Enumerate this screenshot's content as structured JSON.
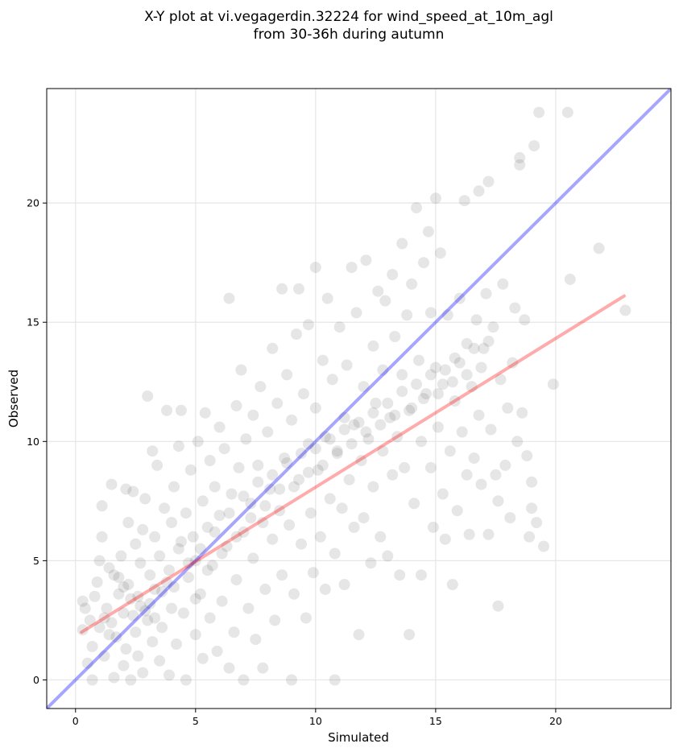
{
  "chart_data": {
    "type": "scatter",
    "title_lines": [
      "X-Y plot at vi.vegagerdin.32224 for wind_speed_at_10m_agl",
      "from 30-36h during autumn"
    ],
    "xlabel": "Simulated",
    "ylabel": "Observed",
    "xlim": [
      -1.2,
      24.8
    ],
    "ylim": [
      -1.2,
      24.8
    ],
    "xticks": [
      0,
      5,
      10,
      15,
      20
    ],
    "yticks": [
      0,
      5,
      10,
      15,
      20
    ],
    "grid": true,
    "point_color": "#333333",
    "point_opacity": 0.12,
    "identity_line": {
      "color": "#0000ff",
      "opacity": 0.35,
      "from": [
        -1.2,
        -1.2
      ],
      "to": [
        24.8,
        24.8
      ]
    },
    "fit_line": {
      "color": "#ff0000",
      "opacity": 0.33,
      "from": [
        0.25,
        2.0
      ],
      "to": [
        22.85,
        16.1
      ]
    },
    "points": [
      [
        0.3,
        3.3
      ],
      [
        0.3,
        2.1
      ],
      [
        0.4,
        3.0
      ],
      [
        0.5,
        0.7
      ],
      [
        0.6,
        2.5
      ],
      [
        0.7,
        0.0
      ],
      [
        0.7,
        1.4
      ],
      [
        0.8,
        3.5
      ],
      [
        0.9,
        4.1
      ],
      [
        1.0,
        2.2
      ],
      [
        1.0,
        5.0
      ],
      [
        1.1,
        7.3
      ],
      [
        1.1,
        6.0
      ],
      [
        1.2,
        1.0
      ],
      [
        1.3,
        3.0
      ],
      [
        1.4,
        4.7
      ],
      [
        1.5,
        2.4
      ],
      [
        1.5,
        8.2
      ],
      [
        1.6,
        4.4
      ],
      [
        1.6,
        0.1
      ],
      [
        1.7,
        1.8
      ],
      [
        1.8,
        3.6
      ],
      [
        1.9,
        5.2
      ],
      [
        2.0,
        2.8
      ],
      [
        2.0,
        0.6
      ],
      [
        2.1,
        8.0
      ],
      [
        2.1,
        1.3
      ],
      [
        2.2,
        4.0
      ],
      [
        2.2,
        6.6
      ],
      [
        2.3,
        0.0
      ],
      [
        2.3,
        3.4
      ],
      [
        2.4,
        7.9
      ],
      [
        2.5,
        2.0
      ],
      [
        2.5,
        5.7
      ],
      [
        2.6,
        1.0
      ],
      [
        2.7,
        4.9
      ],
      [
        2.7,
        3.1
      ],
      [
        2.8,
        6.3
      ],
      [
        2.8,
        0.3
      ],
      [
        2.9,
        7.6
      ],
      [
        3.0,
        11.9
      ],
      [
        3.0,
        2.5
      ],
      [
        3.1,
        4.4
      ],
      [
        3.2,
        9.6
      ],
      [
        3.2,
        1.6
      ],
      [
        3.3,
        6.0
      ],
      [
        3.3,
        3.8
      ],
      [
        3.4,
        9.0
      ],
      [
        3.5,
        0.8
      ],
      [
        3.5,
        5.2
      ],
      [
        3.6,
        2.2
      ],
      [
        3.7,
        7.2
      ],
      [
        3.8,
        11.3
      ],
      [
        3.8,
        4.1
      ],
      [
        3.9,
        0.2
      ],
      [
        4.0,
        6.6
      ],
      [
        4.0,
        3.0
      ],
      [
        4.1,
        8.1
      ],
      [
        4.2,
        1.5
      ],
      [
        4.3,
        9.8
      ],
      [
        4.3,
        5.5
      ],
      [
        4.4,
        11.3
      ],
      [
        4.5,
        2.8
      ],
      [
        4.6,
        7.0
      ],
      [
        4.6,
        0.0
      ],
      [
        4.7,
        4.3
      ],
      [
        4.8,
        8.8
      ],
      [
        4.9,
        6.0
      ],
      [
        5.0,
        1.9
      ],
      [
        5.0,
        5.0
      ],
      [
        5.1,
        10.0
      ],
      [
        5.2,
        3.6
      ],
      [
        5.3,
        7.5
      ],
      [
        5.3,
        0.9
      ],
      [
        5.4,
        11.2
      ],
      [
        5.5,
        6.4
      ],
      [
        5.6,
        2.6
      ],
      [
        5.6,
        9.2
      ],
      [
        5.7,
        4.8
      ],
      [
        5.8,
        8.1
      ],
      [
        5.9,
        1.2
      ],
      [
        6.0,
        10.6
      ],
      [
        6.0,
        6.9
      ],
      [
        6.1,
        3.3
      ],
      [
        6.2,
        9.7
      ],
      [
        6.3,
        5.6
      ],
      [
        6.4,
        0.5
      ],
      [
        6.4,
        16.0
      ],
      [
        6.5,
        7.8
      ],
      [
        6.6,
        2.0
      ],
      [
        6.7,
        11.5
      ],
      [
        6.7,
        4.2
      ],
      [
        6.8,
        8.9
      ],
      [
        6.9,
        13.0
      ],
      [
        7.0,
        6.2
      ],
      [
        7.0,
        0.0
      ],
      [
        7.1,
        10.1
      ],
      [
        7.2,
        3.0
      ],
      [
        7.3,
        7.4
      ],
      [
        7.4,
        11.1
      ],
      [
        7.4,
        5.1
      ],
      [
        7.5,
        1.7
      ],
      [
        7.6,
        9.0
      ],
      [
        7.7,
        12.3
      ],
      [
        7.8,
        6.6
      ],
      [
        7.8,
        0.5
      ],
      [
        7.9,
        3.8
      ],
      [
        8.0,
        10.4
      ],
      [
        8.1,
        8.0
      ],
      [
        8.2,
        13.9
      ],
      [
        8.2,
        5.9
      ],
      [
        8.3,
        2.5
      ],
      [
        8.4,
        11.6
      ],
      [
        8.5,
        7.1
      ],
      [
        8.6,
        16.4
      ],
      [
        8.6,
        4.4
      ],
      [
        8.7,
        9.3
      ],
      [
        8.8,
        12.8
      ],
      [
        8.9,
        6.5
      ],
      [
        9.0,
        0.0
      ],
      [
        9.0,
        10.9
      ],
      [
        9.1,
        3.6
      ],
      [
        9.2,
        14.5
      ],
      [
        9.3,
        8.4
      ],
      [
        9.3,
        16.4
      ],
      [
        9.4,
        5.7
      ],
      [
        9.5,
        12.0
      ],
      [
        9.6,
        2.6
      ],
      [
        9.7,
        9.9
      ],
      [
        9.7,
        14.9
      ],
      [
        9.8,
        7.0
      ],
      [
        9.9,
        4.5
      ],
      [
        10.0,
        11.4
      ],
      [
        10.0,
        17.3
      ],
      [
        10.1,
        8.8
      ],
      [
        10.2,
        6.0
      ],
      [
        10.3,
        13.4
      ],
      [
        10.4,
        3.8
      ],
      [
        10.4,
        10.2
      ],
      [
        10.5,
        16.0
      ],
      [
        10.6,
        7.6
      ],
      [
        10.7,
        12.6
      ],
      [
        10.8,
        0.0
      ],
      [
        10.8,
        5.3
      ],
      [
        10.9,
        9.5
      ],
      [
        11.0,
        14.8
      ],
      [
        11.1,
        7.2
      ],
      [
        11.2,
        11.0
      ],
      [
        11.2,
        4.0
      ],
      [
        11.3,
        13.2
      ],
      [
        11.4,
        8.4
      ],
      [
        11.5,
        17.3
      ],
      [
        11.6,
        6.4
      ],
      [
        11.6,
        10.7
      ],
      [
        11.7,
        15.4
      ],
      [
        11.8,
        1.9
      ],
      [
        11.9,
        9.2
      ],
      [
        12.0,
        12.3
      ],
      [
        12.0,
        6.8
      ],
      [
        12.1,
        17.6
      ],
      [
        12.2,
        10.1
      ],
      [
        12.3,
        4.9
      ],
      [
        12.4,
        14.0
      ],
      [
        12.4,
        8.1
      ],
      [
        12.5,
        11.6
      ],
      [
        12.6,
        16.3
      ],
      [
        12.7,
        6.0
      ],
      [
        12.8,
        13.0
      ],
      [
        12.8,
        9.6
      ],
      [
        12.9,
        15.9
      ],
      [
        13.0,
        5.2
      ],
      [
        13.1,
        11.0
      ],
      [
        13.2,
        17.0
      ],
      [
        13.2,
        8.6
      ],
      [
        13.3,
        14.4
      ],
      [
        13.4,
        10.2
      ],
      [
        13.5,
        4.4
      ],
      [
        13.6,
        12.8
      ],
      [
        13.6,
        18.3
      ],
      [
        13.7,
        8.9
      ],
      [
        13.8,
        15.3
      ],
      [
        13.9,
        1.9
      ],
      [
        14.0,
        11.4
      ],
      [
        14.0,
        16.6
      ],
      [
        14.1,
        7.4
      ],
      [
        14.2,
        19.8
      ],
      [
        14.3,
        13.4
      ],
      [
        14.4,
        10.0
      ],
      [
        14.4,
        4.4
      ],
      [
        14.5,
        17.5
      ],
      [
        14.6,
        12.0
      ],
      [
        14.7,
        18.8
      ],
      [
        14.8,
        8.9
      ],
      [
        14.8,
        15.4
      ],
      [
        14.9,
        6.4
      ],
      [
        15.0,
        20.2
      ],
      [
        15.0,
        13.1
      ],
      [
        15.1,
        10.6
      ],
      [
        15.2,
        17.9
      ],
      [
        15.3,
        7.8
      ],
      [
        15.3,
        12.4
      ],
      [
        15.4,
        5.9
      ],
      [
        15.5,
        15.3
      ],
      [
        15.6,
        9.6
      ],
      [
        15.7,
        4.0
      ],
      [
        15.8,
        11.7
      ],
      [
        15.8,
        13.5
      ],
      [
        15.9,
        7.1
      ],
      [
        16.0,
        16.0
      ],
      [
        16.1,
        10.4
      ],
      [
        16.2,
        20.1
      ],
      [
        16.3,
        8.6
      ],
      [
        16.3,
        14.1
      ],
      [
        16.4,
        6.1
      ],
      [
        16.5,
        12.3
      ],
      [
        16.6,
        9.3
      ],
      [
        16.7,
        15.1
      ],
      [
        16.8,
        20.5
      ],
      [
        16.8,
        11.1
      ],
      [
        16.9,
        8.2
      ],
      [
        17.0,
        13.9
      ],
      [
        17.1,
        16.2
      ],
      [
        17.2,
        20.9
      ],
      [
        17.2,
        6.1
      ],
      [
        17.3,
        10.5
      ],
      [
        17.4,
        14.8
      ],
      [
        17.5,
        8.6
      ],
      [
        17.6,
        7.5
      ],
      [
        17.6,
        3.1
      ],
      [
        17.7,
        12.6
      ],
      [
        17.8,
        16.6
      ],
      [
        17.9,
        9.0
      ],
      [
        18.0,
        11.4
      ],
      [
        18.1,
        6.8
      ],
      [
        18.2,
        13.3
      ],
      [
        18.3,
        15.6
      ],
      [
        18.4,
        10.0
      ],
      [
        18.5,
        21.9
      ],
      [
        18.5,
        21.6
      ],
      [
        18.6,
        11.2
      ],
      [
        18.7,
        15.1
      ],
      [
        18.8,
        9.4
      ],
      [
        18.9,
        6.0
      ],
      [
        19.0,
        7.2
      ],
      [
        19.0,
        8.3
      ],
      [
        19.1,
        22.4
      ],
      [
        19.2,
        6.6
      ],
      [
        19.3,
        23.8
      ],
      [
        19.5,
        5.6
      ],
      [
        19.9,
        12.4
      ],
      [
        20.5,
        23.8
      ],
      [
        20.6,
        16.8
      ],
      [
        21.8,
        18.1
      ],
      [
        22.9,
        15.5
      ],
      [
        1.2,
        2.6
      ],
      [
        1.4,
        1.9
      ],
      [
        1.8,
        4.3
      ],
      [
        2.0,
        3.9
      ],
      [
        2.4,
        2.7
      ],
      [
        2.6,
        3.5
      ],
      [
        2.9,
        2.9
      ],
      [
        3.1,
        3.2
      ],
      [
        3.3,
        2.6
      ],
      [
        3.6,
        3.7
      ],
      [
        3.9,
        4.6
      ],
      [
        4.1,
        3.9
      ],
      [
        4.4,
        5.8
      ],
      [
        4.7,
        4.9
      ],
      [
        5.0,
        3.4
      ],
      [
        5.2,
        5.5
      ],
      [
        5.5,
        4.6
      ],
      [
        5.8,
        6.2
      ],
      [
        6.1,
        5.3
      ],
      [
        6.4,
        7.0
      ],
      [
        6.7,
        6.0
      ],
      [
        7.0,
        7.7
      ],
      [
        7.3,
        6.8
      ],
      [
        7.6,
        8.3
      ],
      [
        7.9,
        7.3
      ],
      [
        8.2,
        8.6
      ],
      [
        8.5,
        8.0
      ],
      [
        8.8,
        9.1
      ],
      [
        9.1,
        8.1
      ],
      [
        9.4,
        9.5
      ],
      [
        9.7,
        8.7
      ],
      [
        10.0,
        9.7
      ],
      [
        10.3,
        9.0
      ],
      [
        10.6,
        10.1
      ],
      [
        10.9,
        9.6
      ],
      [
        11.2,
        10.5
      ],
      [
        11.5,
        9.9
      ],
      [
        11.8,
        10.8
      ],
      [
        12.1,
        10.4
      ],
      [
        12.4,
        11.2
      ],
      [
        12.7,
        10.7
      ],
      [
        13.0,
        11.6
      ],
      [
        13.3,
        11.1
      ],
      [
        13.6,
        12.1
      ],
      [
        13.9,
        11.3
      ],
      [
        14.2,
        12.4
      ],
      [
        14.5,
        11.8
      ],
      [
        14.8,
        12.8
      ],
      [
        15.1,
        12.0
      ],
      [
        15.4,
        13.0
      ],
      [
        15.7,
        12.5
      ],
      [
        16.0,
        13.3
      ],
      [
        16.3,
        12.8
      ],
      [
        16.6,
        13.9
      ],
      [
        16.9,
        13.1
      ],
      [
        17.2,
        14.2
      ]
    ]
  }
}
